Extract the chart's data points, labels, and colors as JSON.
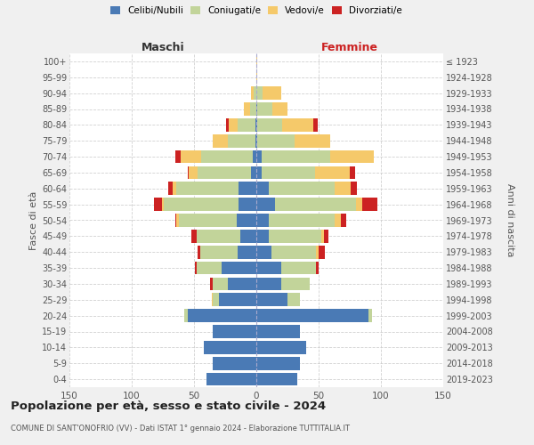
{
  "age_groups": [
    "0-4",
    "5-9",
    "10-14",
    "15-19",
    "20-24",
    "25-29",
    "30-34",
    "35-39",
    "40-44",
    "45-49",
    "50-54",
    "55-59",
    "60-64",
    "65-69",
    "70-74",
    "75-79",
    "80-84",
    "85-89",
    "90-94",
    "95-99",
    "100+"
  ],
  "birth_years": [
    "2019-2023",
    "2014-2018",
    "2009-2013",
    "2004-2008",
    "1999-2003",
    "1994-1998",
    "1989-1993",
    "1984-1988",
    "1979-1983",
    "1974-1978",
    "1969-1973",
    "1964-1968",
    "1959-1963",
    "1954-1958",
    "1949-1953",
    "1944-1948",
    "1939-1943",
    "1934-1938",
    "1929-1933",
    "1924-1928",
    "≤ 1923"
  ],
  "colors": {
    "celibi": "#4a7ab5",
    "coniugati": "#c2d49a",
    "vedovi": "#f5c96a",
    "divorziati": "#cc2222"
  },
  "maschi": {
    "celibi": [
      40,
      35,
      42,
      35,
      55,
      30,
      23,
      28,
      15,
      13,
      16,
      14,
      14,
      4,
      3,
      1,
      1,
      0,
      0,
      0,
      0
    ],
    "coniugati": [
      0,
      0,
      0,
      0,
      3,
      5,
      12,
      20,
      30,
      35,
      46,
      60,
      50,
      43,
      41,
      22,
      14,
      5,
      2,
      0,
      0
    ],
    "vedovi": [
      0,
      0,
      0,
      0,
      0,
      1,
      0,
      0,
      0,
      0,
      2,
      2,
      3,
      7,
      17,
      12,
      7,
      5,
      2,
      0,
      0
    ],
    "divorziati": [
      0,
      0,
      0,
      0,
      0,
      0,
      2,
      1,
      2,
      4,
      1,
      6,
      4,
      1,
      4,
      0,
      2,
      0,
      0,
      0,
      0
    ]
  },
  "femmine": {
    "celibi": [
      33,
      35,
      40,
      35,
      90,
      25,
      20,
      20,
      12,
      10,
      10,
      15,
      10,
      4,
      4,
      1,
      1,
      1,
      0,
      0,
      0
    ],
    "coniugati": [
      0,
      0,
      0,
      0,
      3,
      10,
      23,
      28,
      36,
      42,
      53,
      65,
      53,
      43,
      55,
      30,
      20,
      12,
      5,
      0,
      0
    ],
    "vedovi": [
      0,
      0,
      0,
      0,
      0,
      0,
      0,
      0,
      2,
      2,
      5,
      5,
      13,
      28,
      35,
      28,
      25,
      12,
      15,
      1,
      1
    ],
    "divorziati": [
      0,
      0,
      0,
      0,
      0,
      0,
      0,
      2,
      5,
      4,
      4,
      12,
      5,
      4,
      0,
      0,
      3,
      0,
      0,
      0,
      0
    ]
  },
  "title": "Popolazione per età, sesso e stato civile - 2024",
  "subtitle": "COMUNE DI SANT'ONOFRIO (VV) - Dati ISTAT 1° gennaio 2024 - Elaborazione TUTTITALIA.IT",
  "xlabel_left": "Maschi",
  "xlabel_right": "Femmine",
  "ylabel_left": "Fasce di età",
  "ylabel_right": "Anni di nascita",
  "xlim": 150,
  "legend_labels": [
    "Celibi/Nubili",
    "Coniugati/e",
    "Vedovi/e",
    "Divorziati/e"
  ],
  "bg_color": "#f0f0f0",
  "plot_bg_color": "#ffffff",
  "grid_color": "#cccccc"
}
